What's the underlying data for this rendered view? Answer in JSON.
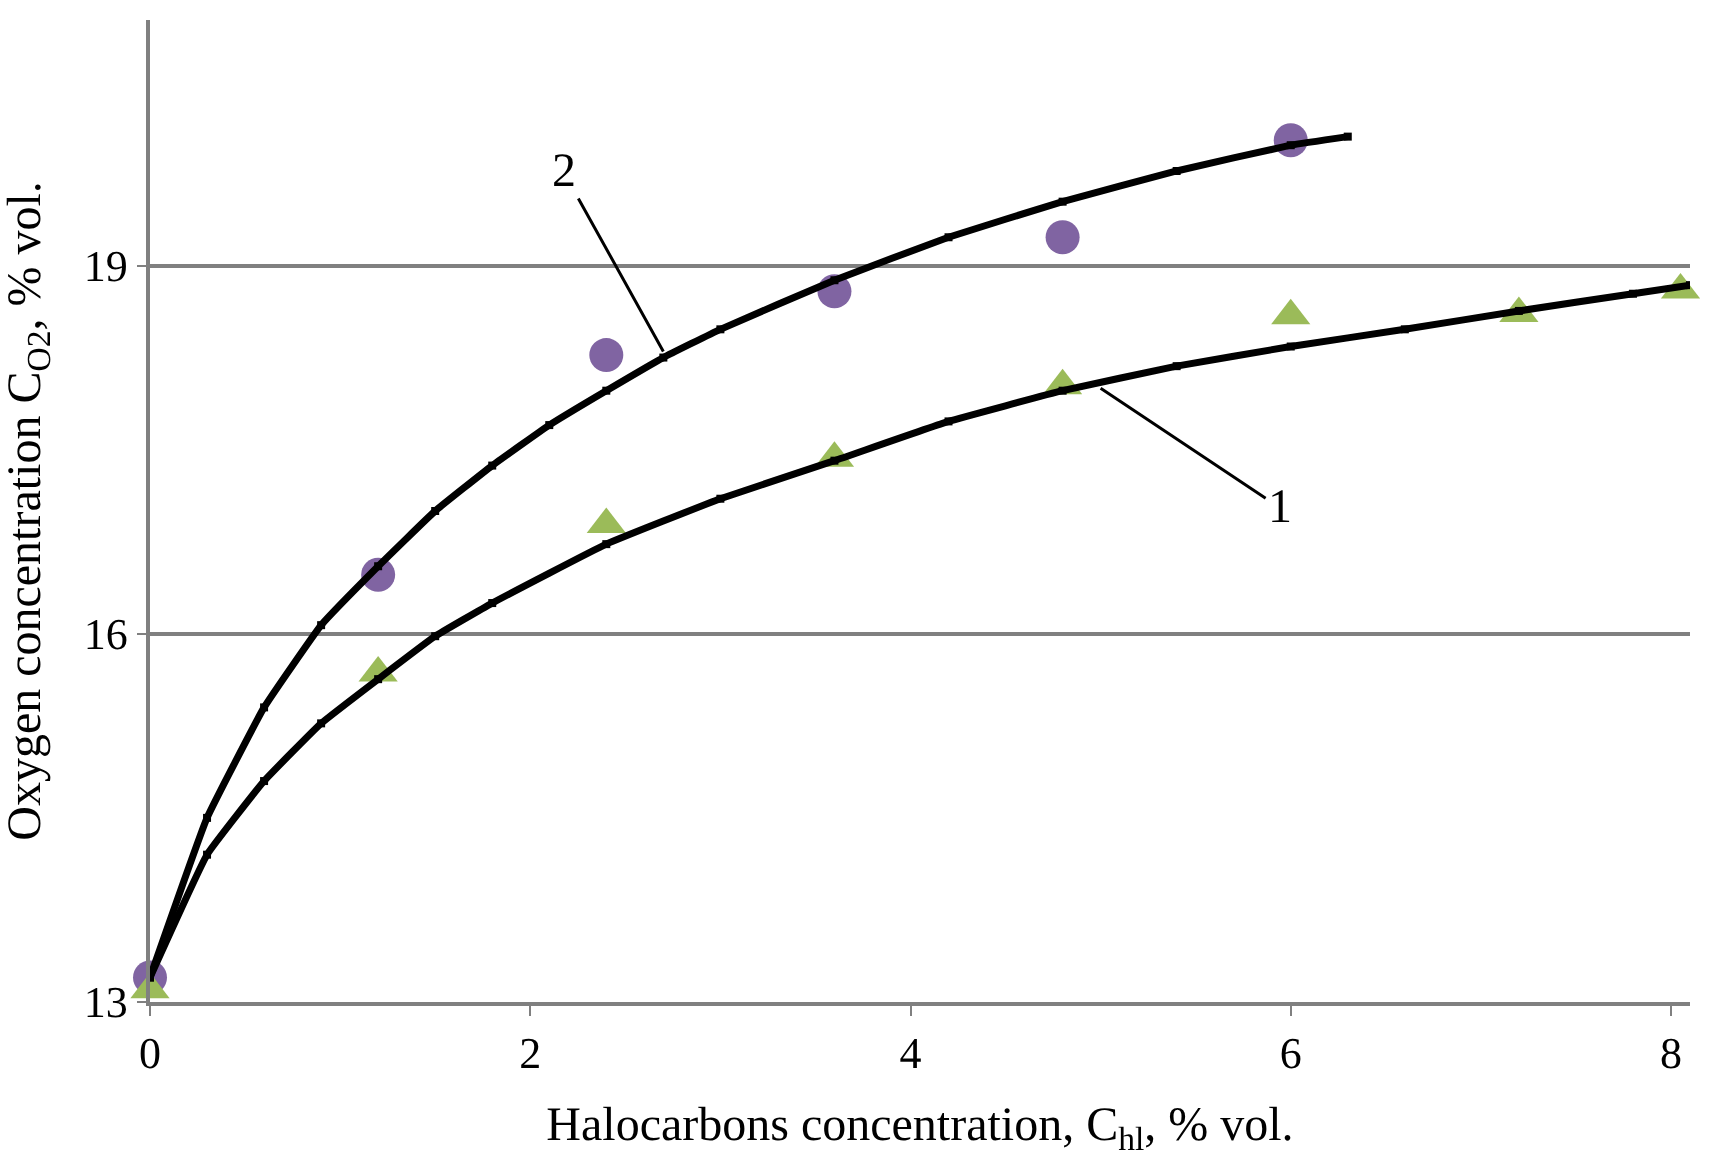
{
  "chart_data": {
    "type": "line",
    "xlabel": "Halocarbons concentration, C$_{hl}$, % vol.",
    "ylabel": "Oxygen concentration C$_{O2}$, % vol.",
    "xlim": [
      0,
      8.1
    ],
    "ylim": [
      13,
      21
    ],
    "xticks": [
      0,
      2,
      4,
      6,
      8
    ],
    "yticks": [
      13,
      16,
      19
    ],
    "grid": "y",
    "series": [
      {
        "color": "#000000",
        "marker": "square",
        "line_style": "solid",
        "x": [
          0,
          0.3,
          0.6,
          0.9,
          1.2,
          1.5,
          1.8,
          2.1,
          2.4,
          2.7,
          3,
          3.6,
          4.2,
          4.8,
          5.4,
          6,
          6.3
        ],
        "values": [
          13.2,
          14.5,
          15.4,
          16.07,
          16.55,
          17.0,
          17.37,
          17.7,
          17.98,
          18.25,
          18.48,
          18.88,
          19.23,
          19.52,
          19.77,
          19.98,
          20.05
        ]
      },
      {
        "color": "#000000",
        "marker": "square",
        "line_style": "solid",
        "x": [
          0,
          0.3,
          0.6,
          0.9,
          1.2,
          1.5,
          1.8,
          2.4,
          3,
          3.6,
          4.2,
          4.8,
          5.4,
          6,
          6.6,
          7.2,
          7.8,
          8.1
        ],
        "values": [
          13.2,
          14.2,
          14.8,
          15.27,
          15.63,
          15.98,
          16.25,
          16.73,
          17.1,
          17.41,
          17.73,
          17.98,
          18.18,
          18.34,
          18.48,
          18.63,
          18.77,
          18.84
        ]
      },
      {
        "type": "scatter",
        "color": "#8064a2",
        "marker": "circle",
        "x": [
          0,
          1.2,
          2.4,
          3.6,
          4.8,
          6
        ],
        "values": [
          13.2,
          16.48,
          18.27,
          18.79,
          19.23,
          20.02
        ]
      },
      {
        "type": "scatter",
        "color": "#9bbb59",
        "marker": "triangle",
        "x": [
          0,
          1.2,
          2.4,
          3.6,
          4.8,
          6,
          7.2,
          8.05
        ],
        "values": [
          13.1,
          15.68,
          16.89,
          17.43,
          18.02,
          18.59,
          18.61,
          18.8
        ]
      }
    ],
    "annotations": [
      {
        "text": "2",
        "x": 2.7,
        "y": 18.3
      },
      {
        "text": "1",
        "x": 5.0,
        "y": 18.0
      }
    ]
  }
}
